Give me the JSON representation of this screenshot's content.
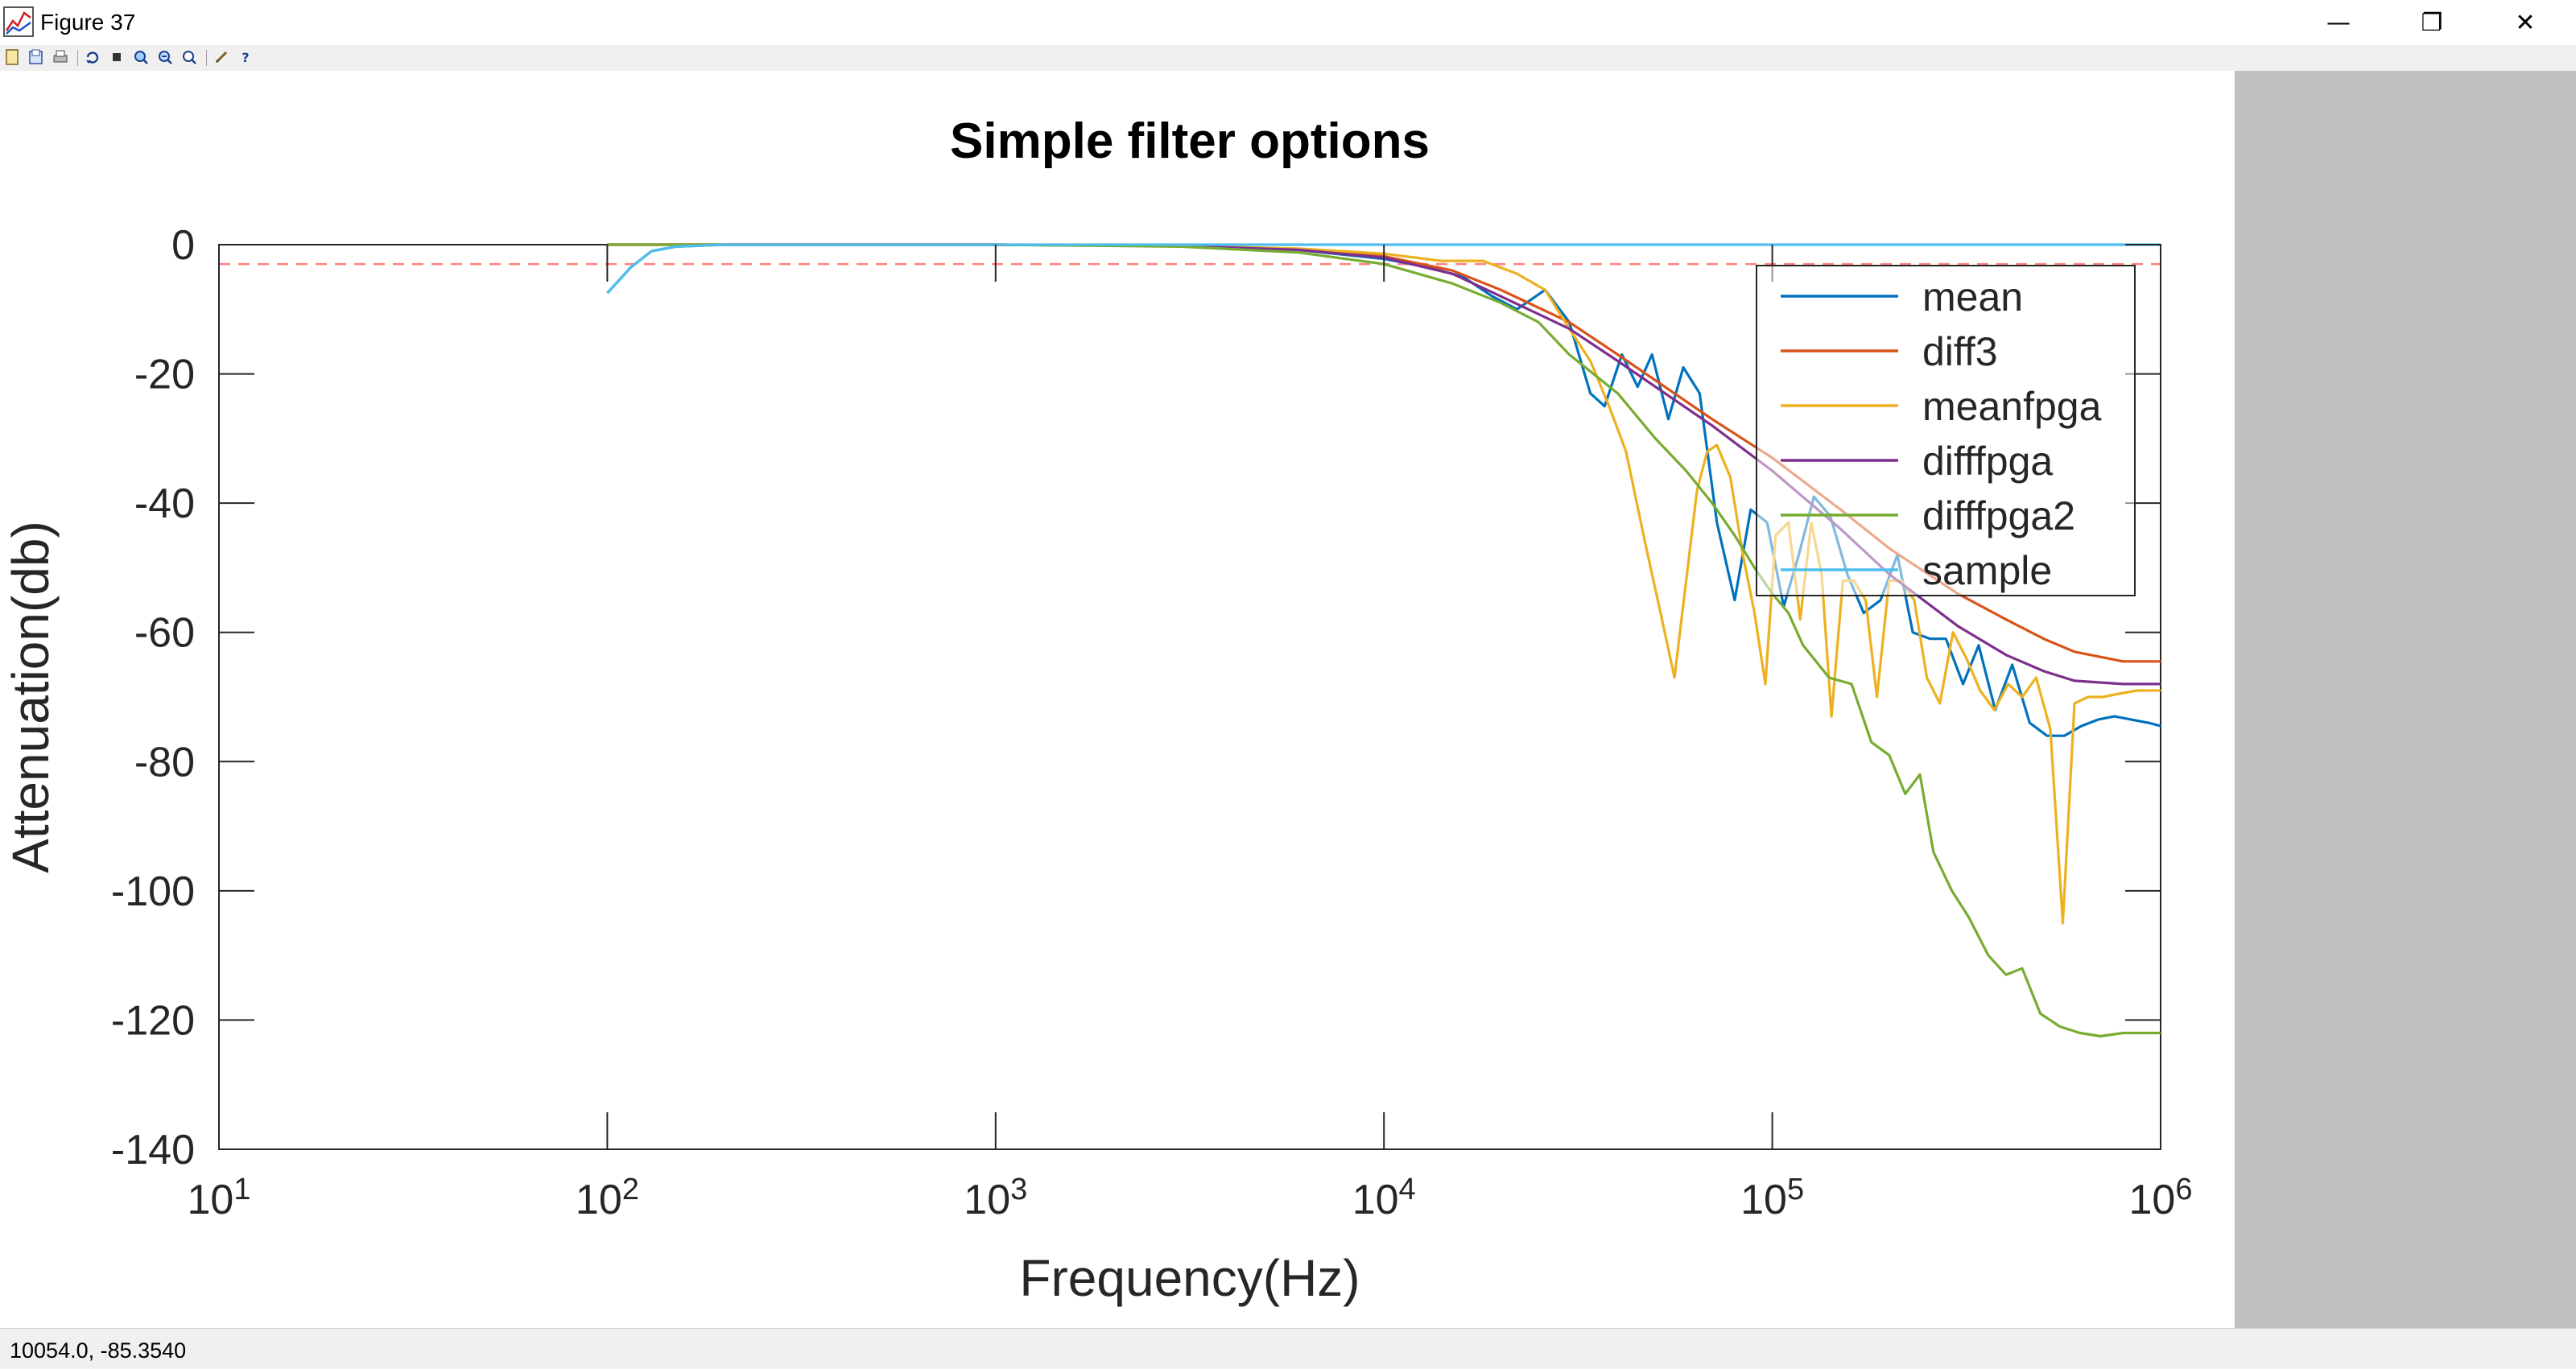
{
  "window": {
    "title": "Figure 37",
    "icon": "matlab-figure-icon",
    "controls": {
      "minimize": "—",
      "restore": "❐",
      "close": "✕"
    }
  },
  "toolbar": {
    "items": [
      "new-icon",
      "open-icon",
      "print-icon",
      "refresh-icon",
      "stop-icon",
      "zoom-in-icon",
      "zoom-out-icon",
      "zoom-reset-icon",
      "edit-icon",
      "help-icon"
    ],
    "help_glyph": "?"
  },
  "statusbar": {
    "coords": "10054.0, -85.3540"
  },
  "colors": {
    "mean": "#0072BD",
    "diff3": "#D95319",
    "meanfpga": "#EDB120",
    "difffpga": "#7E2F8E",
    "difffpga2": "#77AC30",
    "sample": "#4DBEEE",
    "refline": "#ff8080",
    "panel": "#c0c0c0"
  },
  "chart_data": {
    "type": "line",
    "title": "Simple filter options",
    "xlabel": "Frequency(Hz)",
    "ylabel": "Attenuation(db)",
    "xscale": "log",
    "xlim": [
      10,
      1000000
    ],
    "ylim": [
      -140,
      0
    ],
    "x_ticks": [
      {
        "base": "10",
        "exp": "1",
        "value": 10
      },
      {
        "base": "10",
        "exp": "2",
        "value": 100
      },
      {
        "base": "10",
        "exp": "3",
        "value": 1000
      },
      {
        "base": "10",
        "exp": "4",
        "value": 10000
      },
      {
        "base": "10",
        "exp": "5",
        "value": 100000
      },
      {
        "base": "10",
        "exp": "6",
        "value": 1000000
      }
    ],
    "y_ticks": [
      "0",
      "-20",
      "-40",
      "-60",
      "-80",
      "-100",
      "-120",
      "-140"
    ],
    "legend_position": "top-right",
    "reference_line": {
      "y": -3,
      "style": "dashed",
      "color": "#ff8080"
    },
    "series": [
      {
        "name": "mean",
        "color": "#0072BD",
        "points": [
          [
            100,
            -7.5
          ],
          [
            115,
            -3.5
          ],
          [
            130,
            -1
          ],
          [
            150,
            -0.3
          ],
          [
            200,
            0
          ],
          [
            500,
            0
          ],
          [
            1000,
            0
          ],
          [
            3000,
            -0.2
          ],
          [
            6000,
            -0.8
          ],
          [
            10000,
            -2.2
          ],
          [
            13000,
            -3.5
          ],
          [
            16000,
            -5
          ],
          [
            19000,
            -8
          ],
          [
            22000,
            -10
          ],
          [
            26000,
            -7
          ],
          [
            30000,
            -12
          ],
          [
            34000,
            -23
          ],
          [
            37000,
            -25
          ],
          [
            41000,
            -17
          ],
          [
            45000,
            -22
          ],
          [
            49000,
            -17
          ],
          [
            54000,
            -27
          ],
          [
            59000,
            -19
          ],
          [
            65000,
            -23
          ],
          [
            72000,
            -43
          ],
          [
            80000,
            -55
          ],
          [
            88000,
            -41
          ],
          [
            97000,
            -43
          ],
          [
            107000,
            -56
          ],
          [
            117000,
            -48
          ],
          [
            128000,
            -39
          ],
          [
            141000,
            -42
          ],
          [
            156000,
            -51
          ],
          [
            172000,
            -57
          ],
          [
            190000,
            -55
          ],
          [
            210000,
            -48
          ],
          [
            230000,
            -60
          ],
          [
            255000,
            -61
          ],
          [
            280000,
            -61
          ],
          [
            310000,
            -68
          ],
          [
            340000,
            -62
          ],
          [
            375000,
            -72
          ],
          [
            415000,
            -65
          ],
          [
            460000,
            -74
          ],
          [
            510000,
            -76
          ],
          [
            565000,
            -76
          ],
          [
            625000,
            -74.5
          ],
          [
            690000,
            -73.5
          ],
          [
            760000,
            -73
          ],
          [
            840000,
            -73.5
          ],
          [
            930000,
            -74
          ],
          [
            1000000,
            -74.5
          ]
        ]
      },
      {
        "name": "diff3",
        "color": "#D95319",
        "points": [
          [
            100,
            0
          ],
          [
            1000,
            0
          ],
          [
            3000,
            -0.2
          ],
          [
            6000,
            -0.7
          ],
          [
            10000,
            -1.8
          ],
          [
            15000,
            -4
          ],
          [
            20000,
            -7
          ],
          [
            30000,
            -12
          ],
          [
            40000,
            -17
          ],
          [
            50000,
            -21
          ],
          [
            70000,
            -27
          ],
          [
            100000,
            -33
          ],
          [
            150000,
            -41
          ],
          [
            200000,
            -47
          ],
          [
            300000,
            -54
          ],
          [
            400000,
            -58
          ],
          [
            500000,
            -61
          ],
          [
            600000,
            -63
          ],
          [
            800000,
            -64.5
          ],
          [
            1000000,
            -64.5
          ]
        ]
      },
      {
        "name": "meanfpga",
        "color": "#EDB120",
        "points": [
          [
            100,
            0
          ],
          [
            1000,
            0
          ],
          [
            3000,
            -0.2
          ],
          [
            6000,
            -0.6
          ],
          [
            10000,
            -1.4
          ],
          [
            14000,
            -2.5
          ],
          [
            18000,
            -2.5
          ],
          [
            22000,
            -4.5
          ],
          [
            26000,
            -7
          ],
          [
            30000,
            -13
          ],
          [
            34000,
            -18
          ],
          [
            38000,
            -25
          ],
          [
            42000,
            -32
          ],
          [
            47000,
            -46
          ],
          [
            52000,
            -58
          ],
          [
            56000,
            -67
          ],
          [
            60000,
            -52
          ],
          [
            64000,
            -38
          ],
          [
            68000,
            -32
          ],
          [
            72000,
            -31
          ],
          [
            78000,
            -36
          ],
          [
            84000,
            -48
          ],
          [
            90000,
            -57
          ],
          [
            96000,
            -68
          ],
          [
            102000,
            -45
          ],
          [
            110000,
            -43
          ],
          [
            118000,
            -58
          ],
          [
            126000,
            -43
          ],
          [
            134000,
            -51
          ],
          [
            142000,
            -73
          ],
          [
            152000,
            -52
          ],
          [
            162000,
            -52
          ],
          [
            174000,
            -55
          ],
          [
            186000,
            -70
          ],
          [
            200000,
            -52
          ],
          [
            215000,
            -52
          ],
          [
            232000,
            -55
          ],
          [
            250000,
            -67
          ],
          [
            270000,
            -71
          ],
          [
            292000,
            -60
          ],
          [
            316000,
            -64
          ],
          [
            343000,
            -69
          ],
          [
            373000,
            -72
          ],
          [
            405000,
            -68
          ],
          [
            440000,
            -70
          ],
          [
            478000,
            -67
          ],
          [
            520000,
            -75
          ],
          [
            560000,
            -105
          ],
          [
            600000,
            -71
          ],
          [
            650000,
            -70
          ],
          [
            710000,
            -70
          ],
          [
            780000,
            -69.5
          ],
          [
            870000,
            -69
          ],
          [
            1000000,
            -69
          ]
        ]
      },
      {
        "name": "difffpga",
        "color": "#7E2F8E",
        "points": [
          [
            100,
            0
          ],
          [
            1000,
            0
          ],
          [
            3000,
            -0.2
          ],
          [
            6000,
            -0.8
          ],
          [
            10000,
            -2
          ],
          [
            15000,
            -4.5
          ],
          [
            20000,
            -8
          ],
          [
            30000,
            -13
          ],
          [
            40000,
            -18
          ],
          [
            50000,
            -22
          ],
          [
            70000,
            -28
          ],
          [
            100000,
            -35
          ],
          [
            150000,
            -44
          ],
          [
            200000,
            -51
          ],
          [
            300000,
            -59
          ],
          [
            400000,
            -63.5
          ],
          [
            500000,
            -66
          ],
          [
            600000,
            -67.5
          ],
          [
            800000,
            -68
          ],
          [
            1000000,
            -68
          ]
        ]
      },
      {
        "name": "difffpga2",
        "color": "#77AC30",
        "points": [
          [
            100,
            0
          ],
          [
            1000,
            0
          ],
          [
            3000,
            -0.3
          ],
          [
            6000,
            -1.2
          ],
          [
            10000,
            -3
          ],
          [
            15000,
            -6
          ],
          [
            20000,
            -9
          ],
          [
            25000,
            -12
          ],
          [
            30000,
            -17
          ],
          [
            40000,
            -23
          ],
          [
            50000,
            -30
          ],
          [
            60000,
            -35
          ],
          [
            70000,
            -40
          ],
          [
            80000,
            -45
          ],
          [
            90000,
            -50
          ],
          [
            100000,
            -54
          ],
          [
            110000,
            -57
          ],
          [
            120000,
            -62
          ],
          [
            140000,
            -67
          ],
          [
            160000,
            -68
          ],
          [
            180000,
            -77
          ],
          [
            200000,
            -79
          ],
          [
            220000,
            -85
          ],
          [
            240000,
            -82
          ],
          [
            260000,
            -94
          ],
          [
            290000,
            -100
          ],
          [
            320000,
            -104
          ],
          [
            360000,
            -110
          ],
          [
            400000,
            -113
          ],
          [
            440000,
            -112
          ],
          [
            490000,
            -119
          ],
          [
            550000,
            -121
          ],
          [
            620000,
            -122
          ],
          [
            700000,
            -122.5
          ],
          [
            800000,
            -122
          ],
          [
            1000000,
            -122
          ]
        ]
      },
      {
        "name": "sample",
        "color": "#4DBEEE",
        "points": [
          [
            100,
            -7.5
          ],
          [
            115,
            -3.5
          ],
          [
            130,
            -1
          ],
          [
            150,
            -0.3
          ],
          [
            200,
            0
          ],
          [
            1000,
            0
          ],
          [
            10000,
            0
          ],
          [
            100000,
            0
          ],
          [
            1000000,
            0
          ]
        ]
      }
    ]
  }
}
